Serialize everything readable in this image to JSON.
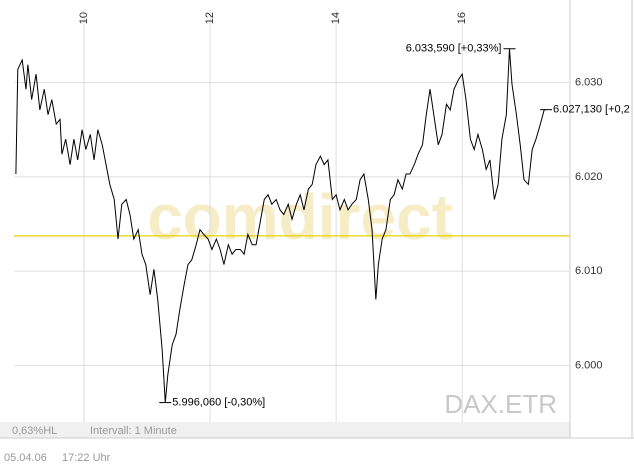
{
  "chart_data": {
    "type": "line",
    "watermark": "comdirect",
    "symbol": "DAX.ETR",
    "xlim": [
      8.89,
      17.71
    ],
    "xticks": [
      10,
      12,
      14,
      16
    ],
    "ylim": [
      5994,
      6037.7
    ],
    "yticks": [
      {
        "value": 6000,
        "label": "6.000"
      },
      {
        "value": 6010,
        "label": "6.010"
      },
      {
        "value": 6020,
        "label": "6.020"
      },
      {
        "value": 6030,
        "label": "6.030"
      }
    ],
    "grid": true,
    "reference_line": {
      "value": 6013.74,
      "color": "#e8d200"
    },
    "x": [
      8.92,
      8.95,
      9.02,
      9.08,
      9.11,
      9.17,
      9.24,
      9.3,
      9.37,
      9.43,
      9.49,
      9.56,
      9.62,
      9.65,
      9.71,
      9.78,
      9.84,
      9.9,
      9.97,
      10.03,
      10.1,
      10.16,
      10.22,
      10.29,
      10.35,
      10.41,
      10.48,
      10.54,
      10.6,
      10.67,
      10.73,
      10.79,
      10.86,
      10.92,
      10.98,
      11.05,
      11.11,
      11.17,
      11.24,
      11.29,
      11.33,
      11.4,
      11.46,
      11.52,
      11.59,
      11.65,
      11.71,
      11.78,
      11.84,
      11.9,
      11.97,
      12.03,
      12.1,
      12.16,
      12.22,
      12.29,
      12.35,
      12.41,
      12.48,
      12.54,
      12.6,
      12.67,
      12.73,
      12.79,
      12.86,
      12.92,
      12.98,
      13.05,
      13.11,
      13.17,
      13.24,
      13.3,
      13.37,
      13.43,
      13.49,
      13.56,
      13.62,
      13.68,
      13.75,
      13.81,
      13.87,
      13.94,
      14.0,
      14.06,
      14.13,
      14.19,
      14.25,
      14.32,
      14.38,
      14.44,
      14.51,
      14.57,
      14.63,
      14.67,
      14.73,
      14.79,
      14.86,
      14.92,
      14.98,
      15.05,
      15.11,
      15.17,
      15.24,
      15.3,
      15.37,
      15.43,
      15.49,
      15.56,
      15.62,
      15.68,
      15.75,
      15.81,
      15.87,
      15.94,
      16.0,
      16.06,
      16.13,
      16.19,
      16.25,
      16.32,
      16.38,
      16.44,
      16.51,
      16.57,
      16.63,
      16.7,
      16.75,
      16.79,
      16.86,
      16.92,
      16.98,
      17.05,
      17.11,
      17.17,
      17.24,
      17.3,
      17.33
    ],
    "series": [
      {
        "color": "#000000",
        "values": [
          6020.3,
          6031.4,
          6032.4,
          6029.3,
          6031.9,
          6028.2,
          6030.9,
          6027.1,
          6029.3,
          6026.6,
          6028.2,
          6025.6,
          6026.1,
          6022.4,
          6024.0,
          6021.3,
          6024.0,
          6021.8,
          6025.0,
          6022.9,
          6024.5,
          6021.8,
          6025.0,
          6023.4,
          6021.3,
          6019.2,
          6017.6,
          6013.4,
          6017.1,
          6017.6,
          6016.0,
          6013.4,
          6014.4,
          6011.8,
          6010.7,
          6007.5,
          6010.2,
          6007.0,
          6001.7,
          5996.06,
          5999.0,
          6002.2,
          6003.3,
          6005.9,
          6008.6,
          6010.7,
          6011.2,
          6012.8,
          6014.4,
          6013.9,
          6013.4,
          6012.3,
          6013.4,
          6012.3,
          6010.7,
          6012.8,
          6011.8,
          6012.3,
          6012.3,
          6011.8,
          6013.9,
          6012.8,
          6012.8,
          6015.0,
          6017.6,
          6018.1,
          6017.1,
          6017.6,
          6016.5,
          6016.0,
          6017.1,
          6015.5,
          6017.1,
          6018.1,
          6016.5,
          6018.7,
          6019.2,
          6021.3,
          6022.2,
          6021.3,
          6021.8,
          6017.6,
          6018.1,
          6016.5,
          6017.6,
          6016.5,
          6017.1,
          6017.6,
          6019.7,
          6020.3,
          6017.6,
          6014.4,
          6007.0,
          6010.7,
          6013.4,
          6014.4,
          6017.6,
          6018.1,
          6019.7,
          6018.7,
          6020.3,
          6020.3,
          6021.3,
          6022.4,
          6023.4,
          6026.6,
          6029.3,
          6026.1,
          6023.4,
          6024.5,
          6027.7,
          6027.1,
          6029.3,
          6030.3,
          6030.9,
          6028.2,
          6024.0,
          6022.9,
          6024.5,
          6022.9,
          6020.8,
          6021.8,
          6017.6,
          6019.2,
          6024.0,
          6026.6,
          6033.59,
          6029.8,
          6026.6,
          6023.4,
          6019.7,
          6019.2,
          6022.9,
          6024.0,
          6025.6,
          6027.1,
          6027.13
        ]
      }
    ],
    "annotations": [
      {
        "x": 16.75,
        "value": 6033.59,
        "label": "6.033,590 [+0,33%]",
        "side": "left"
      },
      {
        "x": 11.29,
        "value": 5996.06,
        "label": "5.996,060 [-0,30%]",
        "side": "right"
      },
      {
        "x": 17.33,
        "value": 6027.13,
        "label": "6.027,130 [+0,2",
        "side": "right"
      }
    ]
  },
  "footer": {
    "range": "0,63%HL",
    "interval": "Intervall: 1 Minute",
    "date": "05.04.06",
    "time": "17:22 Uhr"
  }
}
